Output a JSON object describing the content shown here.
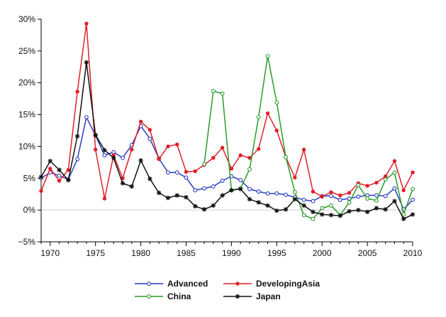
{
  "chart_data": {
    "type": "line",
    "xlim": [
      1969,
      2010
    ],
    "ylim": [
      -5,
      30
    ],
    "x_ticks": [
      1970,
      1975,
      1980,
      1985,
      1990,
      1995,
      2000,
      2005,
      2010
    ],
    "y_ticks": [
      -5,
      0,
      5,
      10,
      15,
      20,
      25,
      30
    ],
    "y_tick_labels": [
      "−5%",
      "0%",
      "5%",
      "10%",
      "15%",
      "20%",
      "25%",
      "30%"
    ],
    "zero_line": true,
    "grid": false,
    "legend_position": "bottom",
    "series": [
      {
        "name": "Advanced",
        "color": "#2a3fc0",
        "marker": "open-circle",
        "x": [
          1969,
          1970,
          1971,
          1972,
          1973,
          1974,
          1975,
          1976,
          1977,
          1978,
          1979,
          1980,
          1981,
          1982,
          1983,
          1984,
          1985,
          1986,
          1987,
          1988,
          1989,
          1990,
          1991,
          1992,
          1993,
          1994,
          1995,
          1996,
          1997,
          1998,
          1999,
          2000,
          2001,
          2002,
          2003,
          2004,
          2005,
          2006,
          2007,
          2008,
          2009,
          2010
        ],
        "values": [
          5.0,
          5.9,
          5.4,
          4.8,
          8.0,
          14.6,
          11.7,
          8.6,
          9.1,
          8.2,
          10.2,
          13.2,
          11.2,
          8.1,
          5.9,
          5.9,
          5.1,
          3.1,
          3.4,
          3.7,
          4.6,
          5.3,
          4.7,
          3.3,
          2.9,
          2.6,
          2.6,
          2.4,
          2.0,
          1.6,
          1.4,
          2.2,
          2.2,
          1.6,
          1.8,
          2.1,
          2.3,
          2.3,
          2.2,
          3.4,
          0.1,
          1.6
        ]
      },
      {
        "name": "DevelopingAsia",
        "color": "#e0202a",
        "marker": "filled-circle",
        "x": [
          1969,
          1970,
          1971,
          1972,
          1973,
          1974,
          1975,
          1976,
          1977,
          1978,
          1979,
          1980,
          1981,
          1982,
          1983,
          1984,
          1985,
          1986,
          1987,
          1988,
          1989,
          1990,
          1991,
          1992,
          1993,
          1994,
          1995,
          1996,
          1997,
          1998,
          1999,
          2000,
          2001,
          2002,
          2003,
          2004,
          2005,
          2006,
          2007,
          2008,
          2009,
          2010
        ],
        "values": [
          3.0,
          6.5,
          4.6,
          6.3,
          18.6,
          29.3,
          9.5,
          1.8,
          8.6,
          5.0,
          9.5,
          13.9,
          12.6,
          8.0,
          10.0,
          10.3,
          6.0,
          6.1,
          7.1,
          8.2,
          9.8,
          6.5,
          8.6,
          8.2,
          9.6,
          15.2,
          12.5,
          8.3,
          5.1,
          9.5,
          2.9,
          2.1,
          2.8,
          2.3,
          2.7,
          4.2,
          3.8,
          4.3,
          5.3,
          7.7,
          3.1,
          5.9
        ]
      },
      {
        "name": "China",
        "color": "#2b9a2b",
        "marker": "open-circle",
        "x": [
          1987,
          1988,
          1989,
          1990,
          1991,
          1992,
          1993,
          1994,
          1995,
          1996,
          1997,
          1998,
          1999,
          2000,
          2001,
          2002,
          2003,
          2004,
          2005,
          2006,
          2007,
          2008,
          2009,
          2010
        ],
        "values": [
          7.2,
          18.7,
          18.3,
          3.1,
          3.4,
          6.4,
          14.6,
          24.2,
          16.9,
          8.3,
          2.8,
          -0.8,
          -1.4,
          0.3,
          0.7,
          -0.8,
          1.2,
          3.9,
          1.8,
          1.5,
          4.8,
          5.9,
          -0.7,
          3.3
        ]
      },
      {
        "name": "Japan",
        "color": "#111111",
        "marker": "star",
        "x": [
          1969,
          1970,
          1971,
          1972,
          1973,
          1974,
          1975,
          1976,
          1977,
          1978,
          1979,
          1980,
          1981,
          1982,
          1983,
          1984,
          1985,
          1986,
          1987,
          1988,
          1989,
          1990,
          1991,
          1992,
          1993,
          1994,
          1995,
          1996,
          1997,
          1998,
          1999,
          2000,
          2001,
          2002,
          2003,
          2004,
          2005,
          2006,
          2007,
          2008,
          2009,
          2010
        ],
        "values": [
          5.2,
          7.7,
          6.3,
          4.7,
          11.6,
          23.2,
          11.8,
          9.4,
          8.2,
          4.2,
          3.7,
          7.8,
          4.9,
          2.7,
          1.9,
          2.3,
          2.0,
          0.6,
          0.1,
          0.7,
          2.3,
          3.1,
          3.3,
          1.7,
          1.2,
          0.7,
          -0.1,
          0.1,
          1.7,
          0.7,
          -0.3,
          -0.7,
          -0.8,
          -0.9,
          -0.2,
          0.0,
          -0.3,
          0.3,
          0.1,
          1.4,
          -1.4,
          -0.7
        ]
      }
    ]
  }
}
